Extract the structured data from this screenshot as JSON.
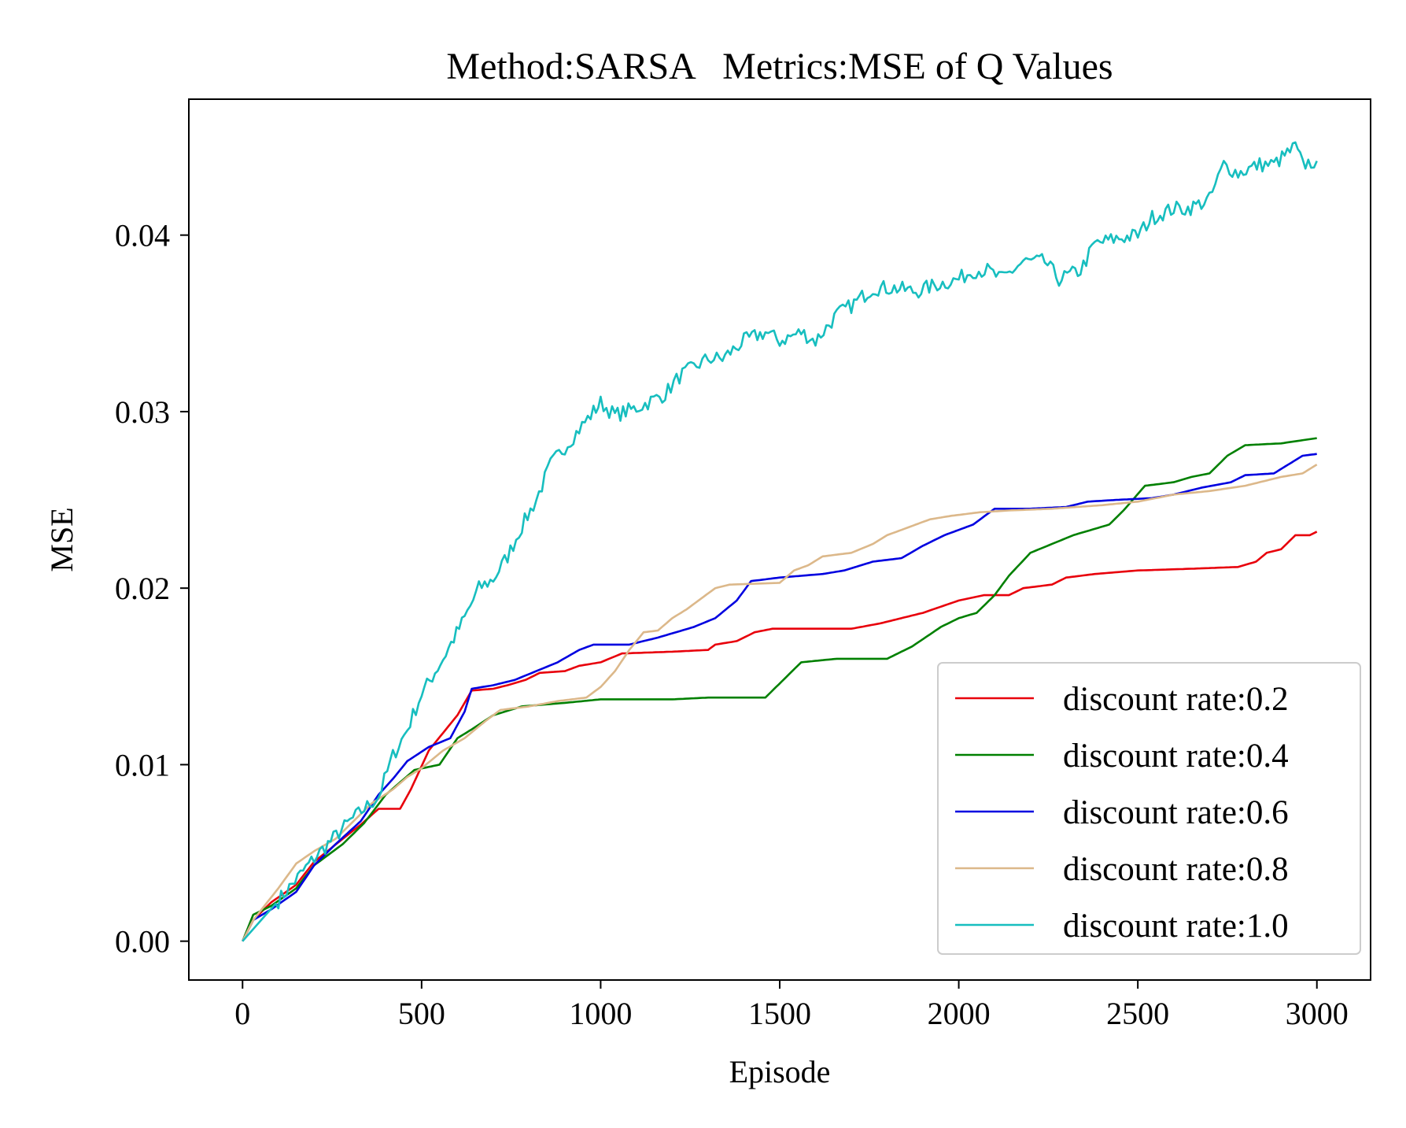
{
  "chart_data": {
    "type": "line",
    "title": "Method:SARSA   Metrics:MSE of Q Values",
    "xlabel": "Episode",
    "ylabel": "MSE",
    "xlim": [
      -150,
      3150
    ],
    "ylim": [
      -0.0022,
      0.0477
    ],
    "xticks": [
      0,
      500,
      1000,
      1500,
      2000,
      2500,
      3000
    ],
    "xtick_labels": [
      "0",
      "500",
      "1000",
      "1500",
      "2000",
      "2500",
      "3000"
    ],
    "yticks": [
      0.0,
      0.01,
      0.02,
      0.03,
      0.04
    ],
    "ytick_labels": [
      "0.00",
      "0.01",
      "0.02",
      "0.03",
      "0.04"
    ],
    "grid": false,
    "legend_position": "lower-right",
    "series": [
      {
        "name": "discount rate:0.2",
        "color": "#e8000b",
        "noise": 0,
        "points": [
          [
            0,
            0
          ],
          [
            30,
            0.0012
          ],
          [
            80,
            0.0022
          ],
          [
            150,
            0.0032
          ],
          [
            200,
            0.0045
          ],
          [
            280,
            0.0058
          ],
          [
            330,
            0.0066
          ],
          [
            380,
            0.0075
          ],
          [
            440,
            0.0075
          ],
          [
            470,
            0.0086
          ],
          [
            520,
            0.0108
          ],
          [
            560,
            0.0118
          ],
          [
            600,
            0.0128
          ],
          [
            640,
            0.0142
          ],
          [
            700,
            0.0143
          ],
          [
            740,
            0.0145
          ],
          [
            790,
            0.0148
          ],
          [
            830,
            0.0152
          ],
          [
            900,
            0.0153
          ],
          [
            940,
            0.0156
          ],
          [
            1000,
            0.0158
          ],
          [
            1060,
            0.0163
          ],
          [
            1200,
            0.0164
          ],
          [
            1300,
            0.0165
          ],
          [
            1320,
            0.0168
          ],
          [
            1380,
            0.017
          ],
          [
            1430,
            0.0175
          ],
          [
            1480,
            0.0177
          ],
          [
            1700,
            0.0177
          ],
          [
            1780,
            0.018
          ],
          [
            1840,
            0.0183
          ],
          [
            1900,
            0.0186
          ],
          [
            2000,
            0.0193
          ],
          [
            2070,
            0.0196
          ],
          [
            2140,
            0.0196
          ],
          [
            2180,
            0.02
          ],
          [
            2260,
            0.0202
          ],
          [
            2300,
            0.0206
          ],
          [
            2380,
            0.0208
          ],
          [
            2500,
            0.021
          ],
          [
            2650,
            0.0211
          ],
          [
            2780,
            0.0212
          ],
          [
            2830,
            0.0215
          ],
          [
            2860,
            0.022
          ],
          [
            2900,
            0.0222
          ],
          [
            2940,
            0.023
          ],
          [
            2980,
            0.023
          ],
          [
            3000,
            0.0232
          ]
        ]
      },
      {
        "name": "discount rate:0.4",
        "color": "#008000",
        "noise": 0,
        "points": [
          [
            0,
            0
          ],
          [
            30,
            0.0015
          ],
          [
            80,
            0.002
          ],
          [
            150,
            0.003
          ],
          [
            200,
            0.0043
          ],
          [
            280,
            0.0055
          ],
          [
            340,
            0.0067
          ],
          [
            400,
            0.0083
          ],
          [
            440,
            0.009
          ],
          [
            480,
            0.0097
          ],
          [
            550,
            0.01
          ],
          [
            600,
            0.0115
          ],
          [
            640,
            0.012
          ],
          [
            700,
            0.0128
          ],
          [
            780,
            0.0133
          ],
          [
            900,
            0.0135
          ],
          [
            1000,
            0.0137
          ],
          [
            1100,
            0.0137
          ],
          [
            1200,
            0.0137
          ],
          [
            1300,
            0.0138
          ],
          [
            1460,
            0.0138
          ],
          [
            1520,
            0.015
          ],
          [
            1560,
            0.0158
          ],
          [
            1660,
            0.016
          ],
          [
            1800,
            0.016
          ],
          [
            1870,
            0.0167
          ],
          [
            1950,
            0.0178
          ],
          [
            2000,
            0.0183
          ],
          [
            2050,
            0.0186
          ],
          [
            2100,
            0.0196
          ],
          [
            2140,
            0.0207
          ],
          [
            2200,
            0.022
          ],
          [
            2260,
            0.0225
          ],
          [
            2320,
            0.023
          ],
          [
            2420,
            0.0236
          ],
          [
            2460,
            0.0244
          ],
          [
            2520,
            0.0258
          ],
          [
            2600,
            0.026
          ],
          [
            2650,
            0.0263
          ],
          [
            2700,
            0.0265
          ],
          [
            2750,
            0.0275
          ],
          [
            2800,
            0.0281
          ],
          [
            2900,
            0.0282
          ],
          [
            3000,
            0.0285
          ]
        ]
      },
      {
        "name": "discount rate:0.6",
        "color": "#0000e0",
        "noise": 0,
        "points": [
          [
            0,
            0
          ],
          [
            30,
            0.0012
          ],
          [
            80,
            0.0018
          ],
          [
            150,
            0.0028
          ],
          [
            200,
            0.0043
          ],
          [
            260,
            0.0055
          ],
          [
            330,
            0.0068
          ],
          [
            380,
            0.0083
          ],
          [
            420,
            0.0092
          ],
          [
            460,
            0.0102
          ],
          [
            520,
            0.011
          ],
          [
            580,
            0.0115
          ],
          [
            620,
            0.013
          ],
          [
            640,
            0.0143
          ],
          [
            700,
            0.0145
          ],
          [
            760,
            0.0148
          ],
          [
            820,
            0.0153
          ],
          [
            880,
            0.0158
          ],
          [
            940,
            0.0165
          ],
          [
            980,
            0.0168
          ],
          [
            1080,
            0.0168
          ],
          [
            1160,
            0.0172
          ],
          [
            1260,
            0.0178
          ],
          [
            1320,
            0.0183
          ],
          [
            1380,
            0.0193
          ],
          [
            1420,
            0.0204
          ],
          [
            1500,
            0.0206
          ],
          [
            1560,
            0.0207
          ],
          [
            1620,
            0.0208
          ],
          [
            1680,
            0.021
          ],
          [
            1760,
            0.0215
          ],
          [
            1840,
            0.0217
          ],
          [
            1900,
            0.0224
          ],
          [
            1960,
            0.023
          ],
          [
            2040,
            0.0236
          ],
          [
            2100,
            0.0245
          ],
          [
            2200,
            0.0245
          ],
          [
            2300,
            0.0246
          ],
          [
            2360,
            0.0249
          ],
          [
            2440,
            0.025
          ],
          [
            2540,
            0.0251
          ],
          [
            2600,
            0.0253
          ],
          [
            2680,
            0.0257
          ],
          [
            2760,
            0.026
          ],
          [
            2800,
            0.0264
          ],
          [
            2880,
            0.0265
          ],
          [
            2920,
            0.027
          ],
          [
            2960,
            0.0275
          ],
          [
            3000,
            0.0276
          ]
        ]
      },
      {
        "name": "discount rate:0.8",
        "color": "#dcb88a",
        "noise": 0,
        "points": [
          [
            0,
            0
          ],
          [
            30,
            0.0012
          ],
          [
            100,
            0.003
          ],
          [
            150,
            0.0044
          ],
          [
            200,
            0.0051
          ],
          [
            260,
            0.0058
          ],
          [
            300,
            0.0066
          ],
          [
            360,
            0.0078
          ],
          [
            420,
            0.0086
          ],
          [
            460,
            0.0093
          ],
          [
            500,
            0.0098
          ],
          [
            560,
            0.0108
          ],
          [
            620,
            0.0115
          ],
          [
            680,
            0.0125
          ],
          [
            720,
            0.0131
          ],
          [
            800,
            0.0133
          ],
          [
            880,
            0.0136
          ],
          [
            960,
            0.0138
          ],
          [
            1000,
            0.0144
          ],
          [
            1040,
            0.0153
          ],
          [
            1080,
            0.0165
          ],
          [
            1120,
            0.0175
          ],
          [
            1160,
            0.0176
          ],
          [
            1200,
            0.0183
          ],
          [
            1240,
            0.0188
          ],
          [
            1280,
            0.0194
          ],
          [
            1320,
            0.02
          ],
          [
            1360,
            0.0202
          ],
          [
            1500,
            0.0203
          ],
          [
            1540,
            0.021
          ],
          [
            1580,
            0.0213
          ],
          [
            1620,
            0.0218
          ],
          [
            1700,
            0.022
          ],
          [
            1760,
            0.0225
          ],
          [
            1800,
            0.023
          ],
          [
            1880,
            0.0236
          ],
          [
            1920,
            0.0239
          ],
          [
            1980,
            0.0241
          ],
          [
            2060,
            0.0243
          ],
          [
            2140,
            0.0244
          ],
          [
            2260,
            0.0245
          ],
          [
            2400,
            0.0247
          ],
          [
            2500,
            0.0249
          ],
          [
            2600,
            0.0253
          ],
          [
            2700,
            0.0255
          ],
          [
            2800,
            0.0258
          ],
          [
            2900,
            0.0263
          ],
          [
            2960,
            0.0265
          ],
          [
            3000,
            0.027
          ]
        ]
      },
      {
        "name": "discount rate:1.0",
        "color": "#17bebf",
        "noise": 0.00055,
        "points": [
          [
            0,
            0
          ],
          [
            100,
            0.0023
          ],
          [
            200,
            0.0047
          ],
          [
            300,
            0.0068
          ],
          [
            380,
            0.0082
          ],
          [
            420,
            0.0105
          ],
          [
            460,
            0.012
          ],
          [
            500,
            0.014
          ],
          [
            560,
            0.016
          ],
          [
            620,
            0.0183
          ],
          [
            660,
            0.02
          ],
          [
            700,
            0.0205
          ],
          [
            740,
            0.0218
          ],
          [
            780,
            0.0235
          ],
          [
            820,
            0.025
          ],
          [
            860,
            0.027
          ],
          [
            900,
            0.028
          ],
          [
            940,
            0.029
          ],
          [
            980,
            0.03
          ],
          [
            1000,
            0.0305
          ],
          [
            1040,
            0.0298
          ],
          [
            1100,
            0.0302
          ],
          [
            1180,
            0.031
          ],
          [
            1220,
            0.032
          ],
          [
            1300,
            0.033
          ],
          [
            1340,
            0.033
          ],
          [
            1400,
            0.034
          ],
          [
            1460,
            0.0345
          ],
          [
            1500,
            0.034
          ],
          [
            1560,
            0.0345
          ],
          [
            1600,
            0.034
          ],
          [
            1660,
            0.0355
          ],
          [
            1700,
            0.036
          ],
          [
            1760,
            0.037
          ],
          [
            1820,
            0.037
          ],
          [
            1880,
            0.0368
          ],
          [
            1940,
            0.0372
          ],
          [
            2000,
            0.0375
          ],
          [
            2040,
            0.038
          ],
          [
            2080,
            0.038
          ],
          [
            2120,
            0.0375
          ],
          [
            2180,
            0.0385
          ],
          [
            2240,
            0.0385
          ],
          [
            2280,
            0.0375
          ],
          [
            2340,
            0.038
          ],
          [
            2380,
            0.0395
          ],
          [
            2440,
            0.0398
          ],
          [
            2500,
            0.04
          ],
          [
            2540,
            0.041
          ],
          [
            2600,
            0.0415
          ],
          [
            2640,
            0.0415
          ],
          [
            2700,
            0.042
          ],
          [
            2740,
            0.044
          ],
          [
            2780,
            0.0435
          ],
          [
            2840,
            0.044
          ],
          [
            2880,
            0.044
          ],
          [
            2940,
            0.045
          ],
          [
            2960,
            0.044
          ],
          [
            3000,
            0.0442
          ]
        ]
      }
    ]
  }
}
